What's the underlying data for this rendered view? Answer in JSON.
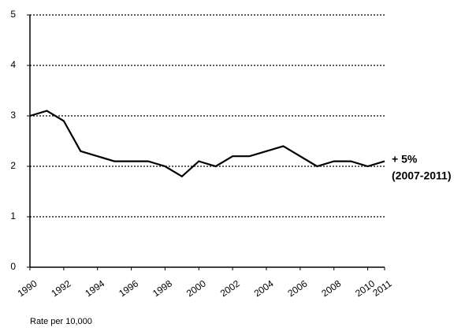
{
  "chart_data": {
    "type": "line",
    "x": [
      1990,
      1991,
      1992,
      1993,
      1994,
      1995,
      1996,
      1997,
      1998,
      1999,
      2000,
      2001,
      2002,
      2003,
      2004,
      2005,
      2006,
      2007,
      2008,
      2009,
      2010,
      2011
    ],
    "series": [
      {
        "name": "Rate per 10,000",
        "color": "#000000",
        "values": [
          3.0,
          3.1,
          2.9,
          2.3,
          2.2,
          2.1,
          2.1,
          2.1,
          2.0,
          1.8,
          2.1,
          2.0,
          2.2,
          2.2,
          2.3,
          2.4,
          2.2,
          2.0,
          2.1,
          2.1,
          2.0,
          2.1
        ]
      }
    ],
    "xlim": [
      1990,
      2011
    ],
    "xticks": [
      1990,
      1992,
      1994,
      1996,
      1998,
      2000,
      2002,
      2004,
      2006,
      2008,
      2010,
      2011
    ],
    "ylim": [
      0,
      5
    ],
    "yticks": [
      0,
      1,
      2,
      3,
      4,
      5
    ],
    "grid": true,
    "annotations": [
      "+ 5%",
      "(2007-2011)"
    ]
  }
}
